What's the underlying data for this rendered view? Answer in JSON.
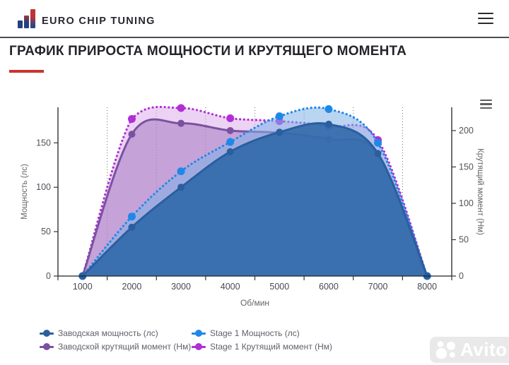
{
  "header": {
    "brand": "EURO CHIP TUNING"
  },
  "page_title": "ГРАФИК ПРИРОСТА МОЩНОСТИ И КРУТЯЩЕГО МОМЕНТА",
  "watermark": {
    "label": "Avito"
  },
  "chart_data": {
    "type": "area",
    "x": [
      1000,
      2000,
      3000,
      4000,
      5000,
      6000,
      7000,
      8000
    ],
    "xlabel": "Об/мин",
    "ylabel_left": "Мощность (лс)",
    "ylabel_right": "Крутящий момент (Нм)",
    "yticks_left": [
      0,
      50,
      100,
      150
    ],
    "yticks_right": [
      0,
      50,
      100,
      150,
      200
    ],
    "ylim_left": [
      0,
      190
    ],
    "ylim_right": [
      0,
      232
    ],
    "grid": "vertical-dotted",
    "legend_position": "bottom",
    "series": [
      {
        "name": "Заводская мощность (лс)",
        "axis": "left",
        "dash": "solid",
        "color": "#2a5f9e",
        "fill": "#2e68a8",
        "fill_opacity": 0.88,
        "values": [
          0,
          55,
          100,
          140,
          162,
          171,
          138,
          0
        ]
      },
      {
        "name": "Заводской крутящий момент (Нм)",
        "axis": "right",
        "dash": "solid",
        "color": "#7b51a1",
        "fill": "#9a6cb8",
        "fill_opacity": 0.48,
        "values": [
          0,
          195,
          210,
          200,
          197,
          188,
          168,
          0
        ]
      },
      {
        "name": "Stage 1 Мощность (лс)",
        "axis": "left",
        "dash": "dotted",
        "color": "#1e88e8",
        "fill": "#7fb3e8",
        "fill_opacity": 0.55,
        "values": [
          0,
          67,
          118,
          151,
          180,
          188,
          150,
          0
        ]
      },
      {
        "name": "Stage 1 Крутящий момент (Нм)",
        "axis": "right",
        "dash": "dotted",
        "color": "#b02fd6",
        "fill": "#d9a8e8",
        "fill_opacity": 0.5,
        "values": [
          0,
          216,
          231,
          217,
          213,
          206,
          187,
          0
        ]
      }
    ]
  }
}
